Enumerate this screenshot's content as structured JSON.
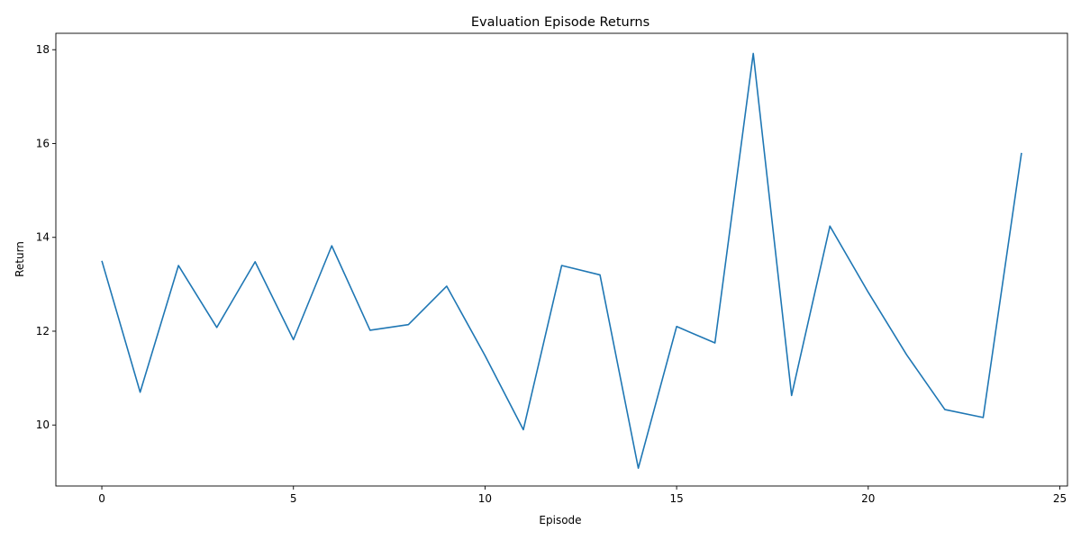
{
  "chart_data": {
    "type": "line",
    "title": "Evaluation Episode Returns",
    "xlabel": "Episode",
    "ylabel": "Return",
    "xlim": [
      -1.2,
      25.2
    ],
    "ylim": [
      8.7,
      18.35
    ],
    "xticks": [
      0,
      5,
      10,
      15,
      20,
      25
    ],
    "yticks": [
      10,
      12,
      14,
      16,
      18
    ],
    "grid": false,
    "series": [
      {
        "color": "#1f77b4",
        "x": [
          0,
          1,
          2,
          3,
          4,
          5,
          6,
          7,
          8,
          9,
          10,
          11,
          12,
          13,
          14,
          15,
          16,
          17,
          18,
          19,
          20,
          21,
          22,
          23,
          24
        ],
        "y": [
          13.5,
          10.7,
          13.4,
          12.08,
          13.48,
          11.82,
          13.82,
          12.02,
          12.14,
          12.96,
          11.48,
          9.9,
          13.4,
          13.2,
          9.08,
          12.1,
          11.75,
          17.92,
          10.63,
          14.24,
          12.83,
          11.5,
          10.33,
          10.16,
          15.8
        ]
      }
    ]
  }
}
